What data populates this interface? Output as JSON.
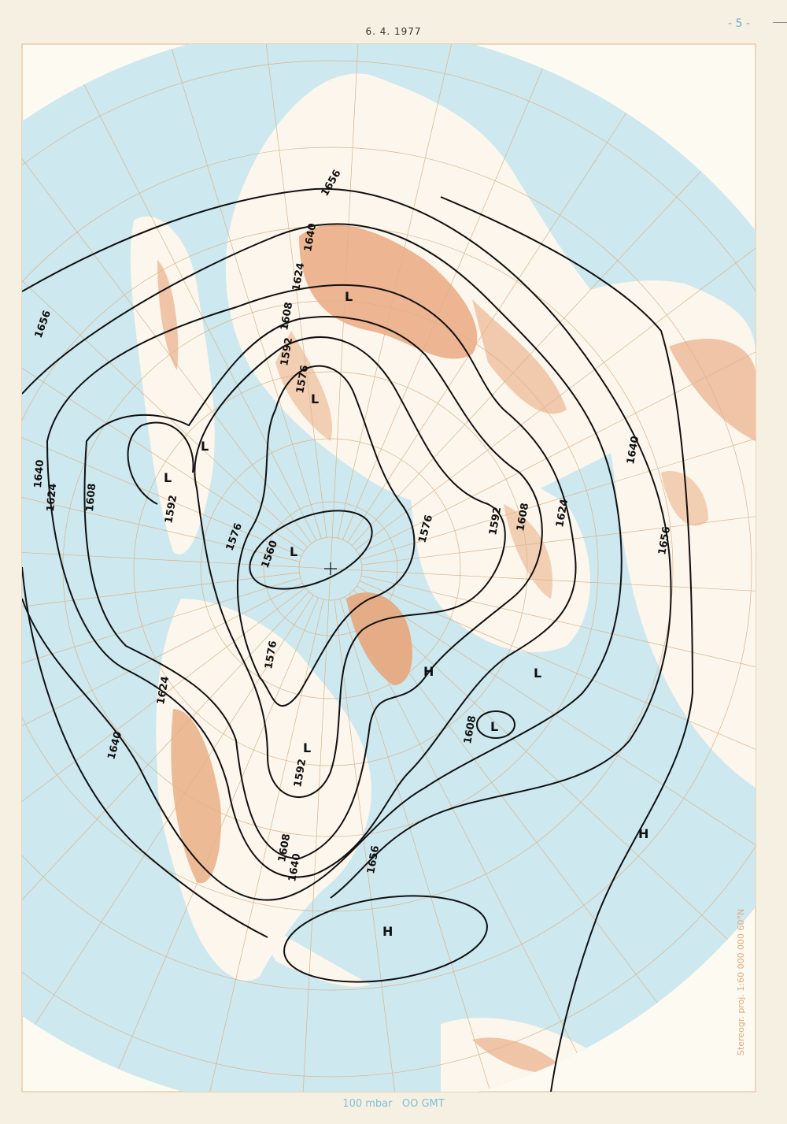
{
  "header": {
    "date": "6. 4. 1977",
    "page_number": "- 5 -"
  },
  "caption": {
    "level": "100 mbar",
    "time": "OO GMT"
  },
  "projection_note": "Stereogr. proj. 1:60 000 000   60°N",
  "colors": {
    "ocean": "#cde8ef",
    "land": "#fcf6ec",
    "relief": "#e8a57a",
    "contour": "#111111",
    "graticule": "#d9b48c",
    "caption": "#7fc0d8"
  },
  "contours": {
    "c1560": "1560",
    "c1576": "1576",
    "c1592": "1592",
    "c1608": "1608",
    "c1624": "1624",
    "c1640": "1640",
    "c1656": "1656"
  },
  "centers": {
    "low": "L",
    "high": "H"
  }
}
